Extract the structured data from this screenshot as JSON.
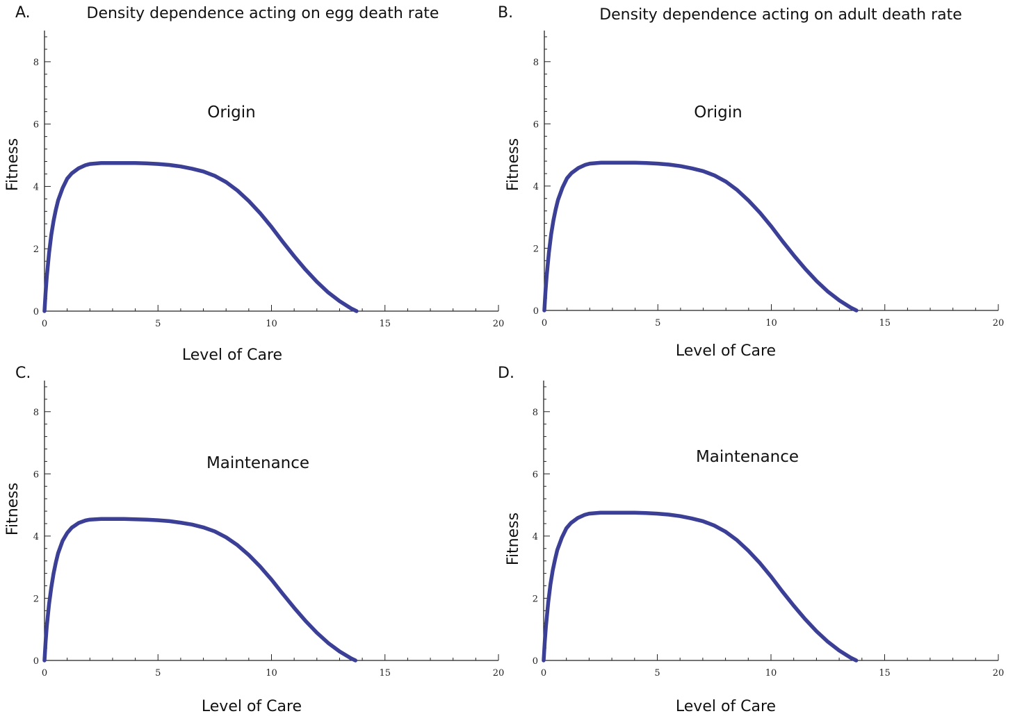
{
  "chart_data": [
    {
      "type": "line",
      "panel_label": "A.",
      "title": "Density dependence acting on egg death rate",
      "annotation": "Origin",
      "xlabel": "Level of Care",
      "ylabel": "Fitness",
      "xlim": [
        0,
        20
      ],
      "ylim": [
        0,
        9
      ],
      "x_ticks": [
        0,
        5,
        10,
        15,
        20
      ],
      "y_ticks": [
        0,
        2,
        4,
        6,
        8
      ],
      "series": [
        {
          "color": "#3b3f95",
          "x": [
            0,
            0.05,
            0.1,
            0.2,
            0.3,
            0.4,
            0.5,
            0.6,
            0.8,
            1.0,
            1.2,
            1.5,
            1.8,
            2.0,
            2.5,
            3.0,
            3.5,
            4.0,
            4.5,
            5.0,
            5.5,
            6.0,
            6.5,
            7.0,
            7.5,
            8.0,
            8.5,
            9.0,
            9.5,
            10.0,
            10.5,
            11.0,
            11.5,
            12.0,
            12.5,
            13.0,
            13.5,
            13.75
          ],
          "y": [
            0,
            0.6,
            1.1,
            1.85,
            2.45,
            2.9,
            3.25,
            3.55,
            3.95,
            4.25,
            4.42,
            4.58,
            4.68,
            4.72,
            4.75,
            4.75,
            4.75,
            4.75,
            4.74,
            4.72,
            4.69,
            4.64,
            4.57,
            4.48,
            4.34,
            4.14,
            3.87,
            3.53,
            3.14,
            2.7,
            2.22,
            1.76,
            1.33,
            0.94,
            0.6,
            0.32,
            0.09,
            0.0
          ]
        }
      ]
    },
    {
      "type": "line",
      "panel_label": "B.",
      "title": "Density dependence acting on adult death rate",
      "annotation": "Origin",
      "xlabel": "Level of Care",
      "ylabel": "Fitness",
      "xlim": [
        0,
        20
      ],
      "ylim": [
        0,
        9
      ],
      "x_ticks": [
        0,
        5,
        10,
        15,
        20
      ],
      "y_ticks": [
        0,
        2,
        4,
        6,
        8
      ],
      "series": [
        {
          "color": "#3b3f95",
          "x": [
            0,
            0.05,
            0.1,
            0.2,
            0.3,
            0.4,
            0.5,
            0.6,
            0.8,
            1.0,
            1.2,
            1.5,
            1.8,
            2.0,
            2.5,
            3.0,
            3.5,
            4.0,
            4.5,
            5.0,
            5.5,
            6.0,
            6.5,
            7.0,
            7.5,
            8.0,
            8.5,
            9.0,
            9.5,
            10.0,
            10.5,
            11.0,
            11.5,
            12.0,
            12.5,
            13.0,
            13.5,
            13.75
          ],
          "y": [
            0,
            0.6,
            1.1,
            1.85,
            2.45,
            2.9,
            3.25,
            3.55,
            3.95,
            4.25,
            4.42,
            4.58,
            4.68,
            4.72,
            4.75,
            4.75,
            4.75,
            4.75,
            4.74,
            4.72,
            4.69,
            4.64,
            4.57,
            4.48,
            4.34,
            4.14,
            3.87,
            3.53,
            3.14,
            2.7,
            2.22,
            1.76,
            1.33,
            0.94,
            0.6,
            0.32,
            0.09,
            0.0
          ]
        }
      ]
    },
    {
      "type": "line",
      "panel_label": "C.",
      "title": "",
      "annotation": "Maintenance",
      "xlabel": "Level of Care",
      "ylabel": "Fitness",
      "xlim": [
        0,
        20
      ],
      "ylim": [
        0,
        9
      ],
      "x_ticks": [
        0,
        5,
        10,
        15,
        20
      ],
      "y_ticks": [
        0,
        2,
        4,
        6,
        8
      ],
      "series": [
        {
          "color": "#3b3f95",
          "x": [
            0,
            0.05,
            0.1,
            0.2,
            0.3,
            0.4,
            0.5,
            0.6,
            0.8,
            1.0,
            1.2,
            1.5,
            1.8,
            2.0,
            2.5,
            3.0,
            3.5,
            4.0,
            4.5,
            5.0,
            5.5,
            6.0,
            6.5,
            7.0,
            7.5,
            8.0,
            8.5,
            9.0,
            9.5,
            10.0,
            10.5,
            11.0,
            11.5,
            12.0,
            12.5,
            13.0,
            13.5,
            13.7
          ],
          "y": [
            0,
            0.6,
            1.1,
            1.8,
            2.35,
            2.8,
            3.15,
            3.45,
            3.85,
            4.1,
            4.27,
            4.42,
            4.5,
            4.53,
            4.55,
            4.55,
            4.55,
            4.54,
            4.53,
            4.51,
            4.48,
            4.43,
            4.37,
            4.28,
            4.15,
            3.96,
            3.71,
            3.39,
            3.02,
            2.6,
            2.14,
            1.69,
            1.27,
            0.89,
            0.56,
            0.29,
            0.07,
            0.0
          ]
        }
      ]
    },
    {
      "type": "line",
      "panel_label": "D.",
      "title": "",
      "annotation": "Maintenance",
      "xlabel": "Level of Care",
      "ylabel": "Fitness",
      "xlim": [
        0,
        20
      ],
      "ylim": [
        0,
        9
      ],
      "x_ticks": [
        0,
        5,
        10,
        15,
        20
      ],
      "y_ticks": [
        0,
        2,
        4,
        6,
        8
      ],
      "series": [
        {
          "color": "#3b3f95",
          "x": [
            0,
            0.05,
            0.1,
            0.2,
            0.3,
            0.4,
            0.5,
            0.6,
            0.8,
            1.0,
            1.2,
            1.5,
            1.8,
            2.0,
            2.5,
            3.0,
            3.5,
            4.0,
            4.5,
            5.0,
            5.5,
            6.0,
            6.5,
            7.0,
            7.5,
            8.0,
            8.5,
            9.0,
            9.5,
            10.0,
            10.5,
            11.0,
            11.5,
            12.0,
            12.5,
            13.0,
            13.5,
            13.75
          ],
          "y": [
            0,
            0.6,
            1.1,
            1.85,
            2.45,
            2.9,
            3.25,
            3.55,
            3.95,
            4.25,
            4.42,
            4.58,
            4.68,
            4.72,
            4.75,
            4.75,
            4.75,
            4.75,
            4.74,
            4.72,
            4.69,
            4.64,
            4.57,
            4.48,
            4.34,
            4.14,
            3.87,
            3.53,
            3.14,
            2.7,
            2.22,
            1.76,
            1.33,
            0.94,
            0.6,
            0.32,
            0.09,
            0.0
          ]
        }
      ]
    }
  ]
}
